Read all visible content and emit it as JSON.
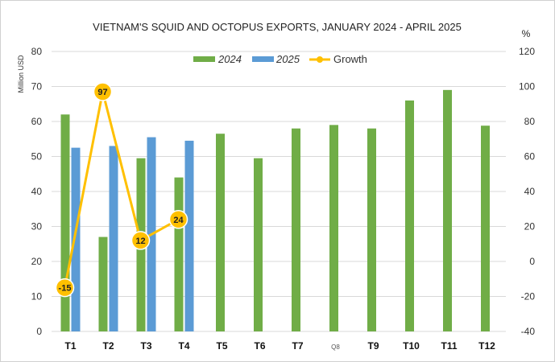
{
  "chart_data": {
    "type": "bar",
    "title": "VIETNAM'S SQUID AND OCTOPUS EXPORTS, JANUARY 2024 - APRIL 2025",
    "ylabel": "Million USD",
    "y2label": "%",
    "ylim": [
      0,
      80
    ],
    "y2lim": [
      -40,
      120
    ],
    "yticks": [
      "0",
      "10",
      "20",
      "30",
      "40",
      "50",
      "60",
      "70",
      "80"
    ],
    "y2ticks": [
      "-40",
      "-20",
      "0",
      "20",
      "40",
      "60",
      "80",
      "100",
      "120"
    ],
    "grid": true,
    "legend_position": "top",
    "categories": [
      "T1",
      "T2",
      "T3",
      "T4",
      "T5",
      "T6",
      "T7",
      "Q8",
      "T9",
      "T10",
      "T11",
      "T12"
    ],
    "series": [
      {
        "name": "2024",
        "color": "#70ad47",
        "values": [
          62,
          27,
          49.5,
          44,
          56.5,
          49.5,
          58,
          59,
          58,
          66,
          69,
          58.8
        ]
      },
      {
        "name": "2025",
        "color": "#5b9bd5",
        "values": [
          52.5,
          53,
          55.5,
          54.5,
          null,
          null,
          null,
          null,
          null,
          null,
          null,
          null
        ]
      }
    ],
    "line": {
      "name": "Growth",
      "color": "#ffc000",
      "axis": "right",
      "values": [
        -15,
        97,
        12,
        24
      ],
      "labels": [
        "-15",
        "97",
        "12",
        "24"
      ]
    }
  }
}
